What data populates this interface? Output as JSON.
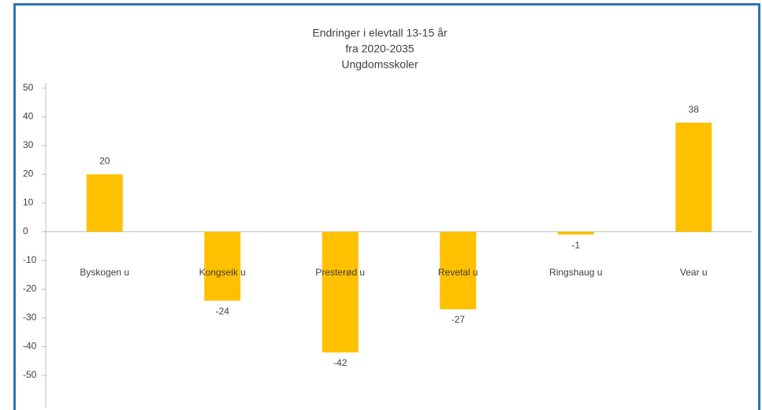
{
  "chart_data": {
    "type": "bar",
    "title": [
      "Endringer i elevtall 13-15 år",
      "fra 2020-2035",
      "Ungdomsskoler"
    ],
    "categories": [
      "Byskogen u",
      "Kongseik u",
      "Presterød u",
      "Revetal u",
      "Ringshaug u",
      "Vear u"
    ],
    "values": [
      20,
      -24,
      -42,
      -27,
      -1,
      38
    ],
    "color": "#ffc000",
    "ylim": [
      -50,
      50
    ],
    "yticks": [
      -50,
      -40,
      -30,
      -20,
      -10,
      0,
      10,
      20,
      30,
      40,
      50
    ],
    "grid": false
  }
}
